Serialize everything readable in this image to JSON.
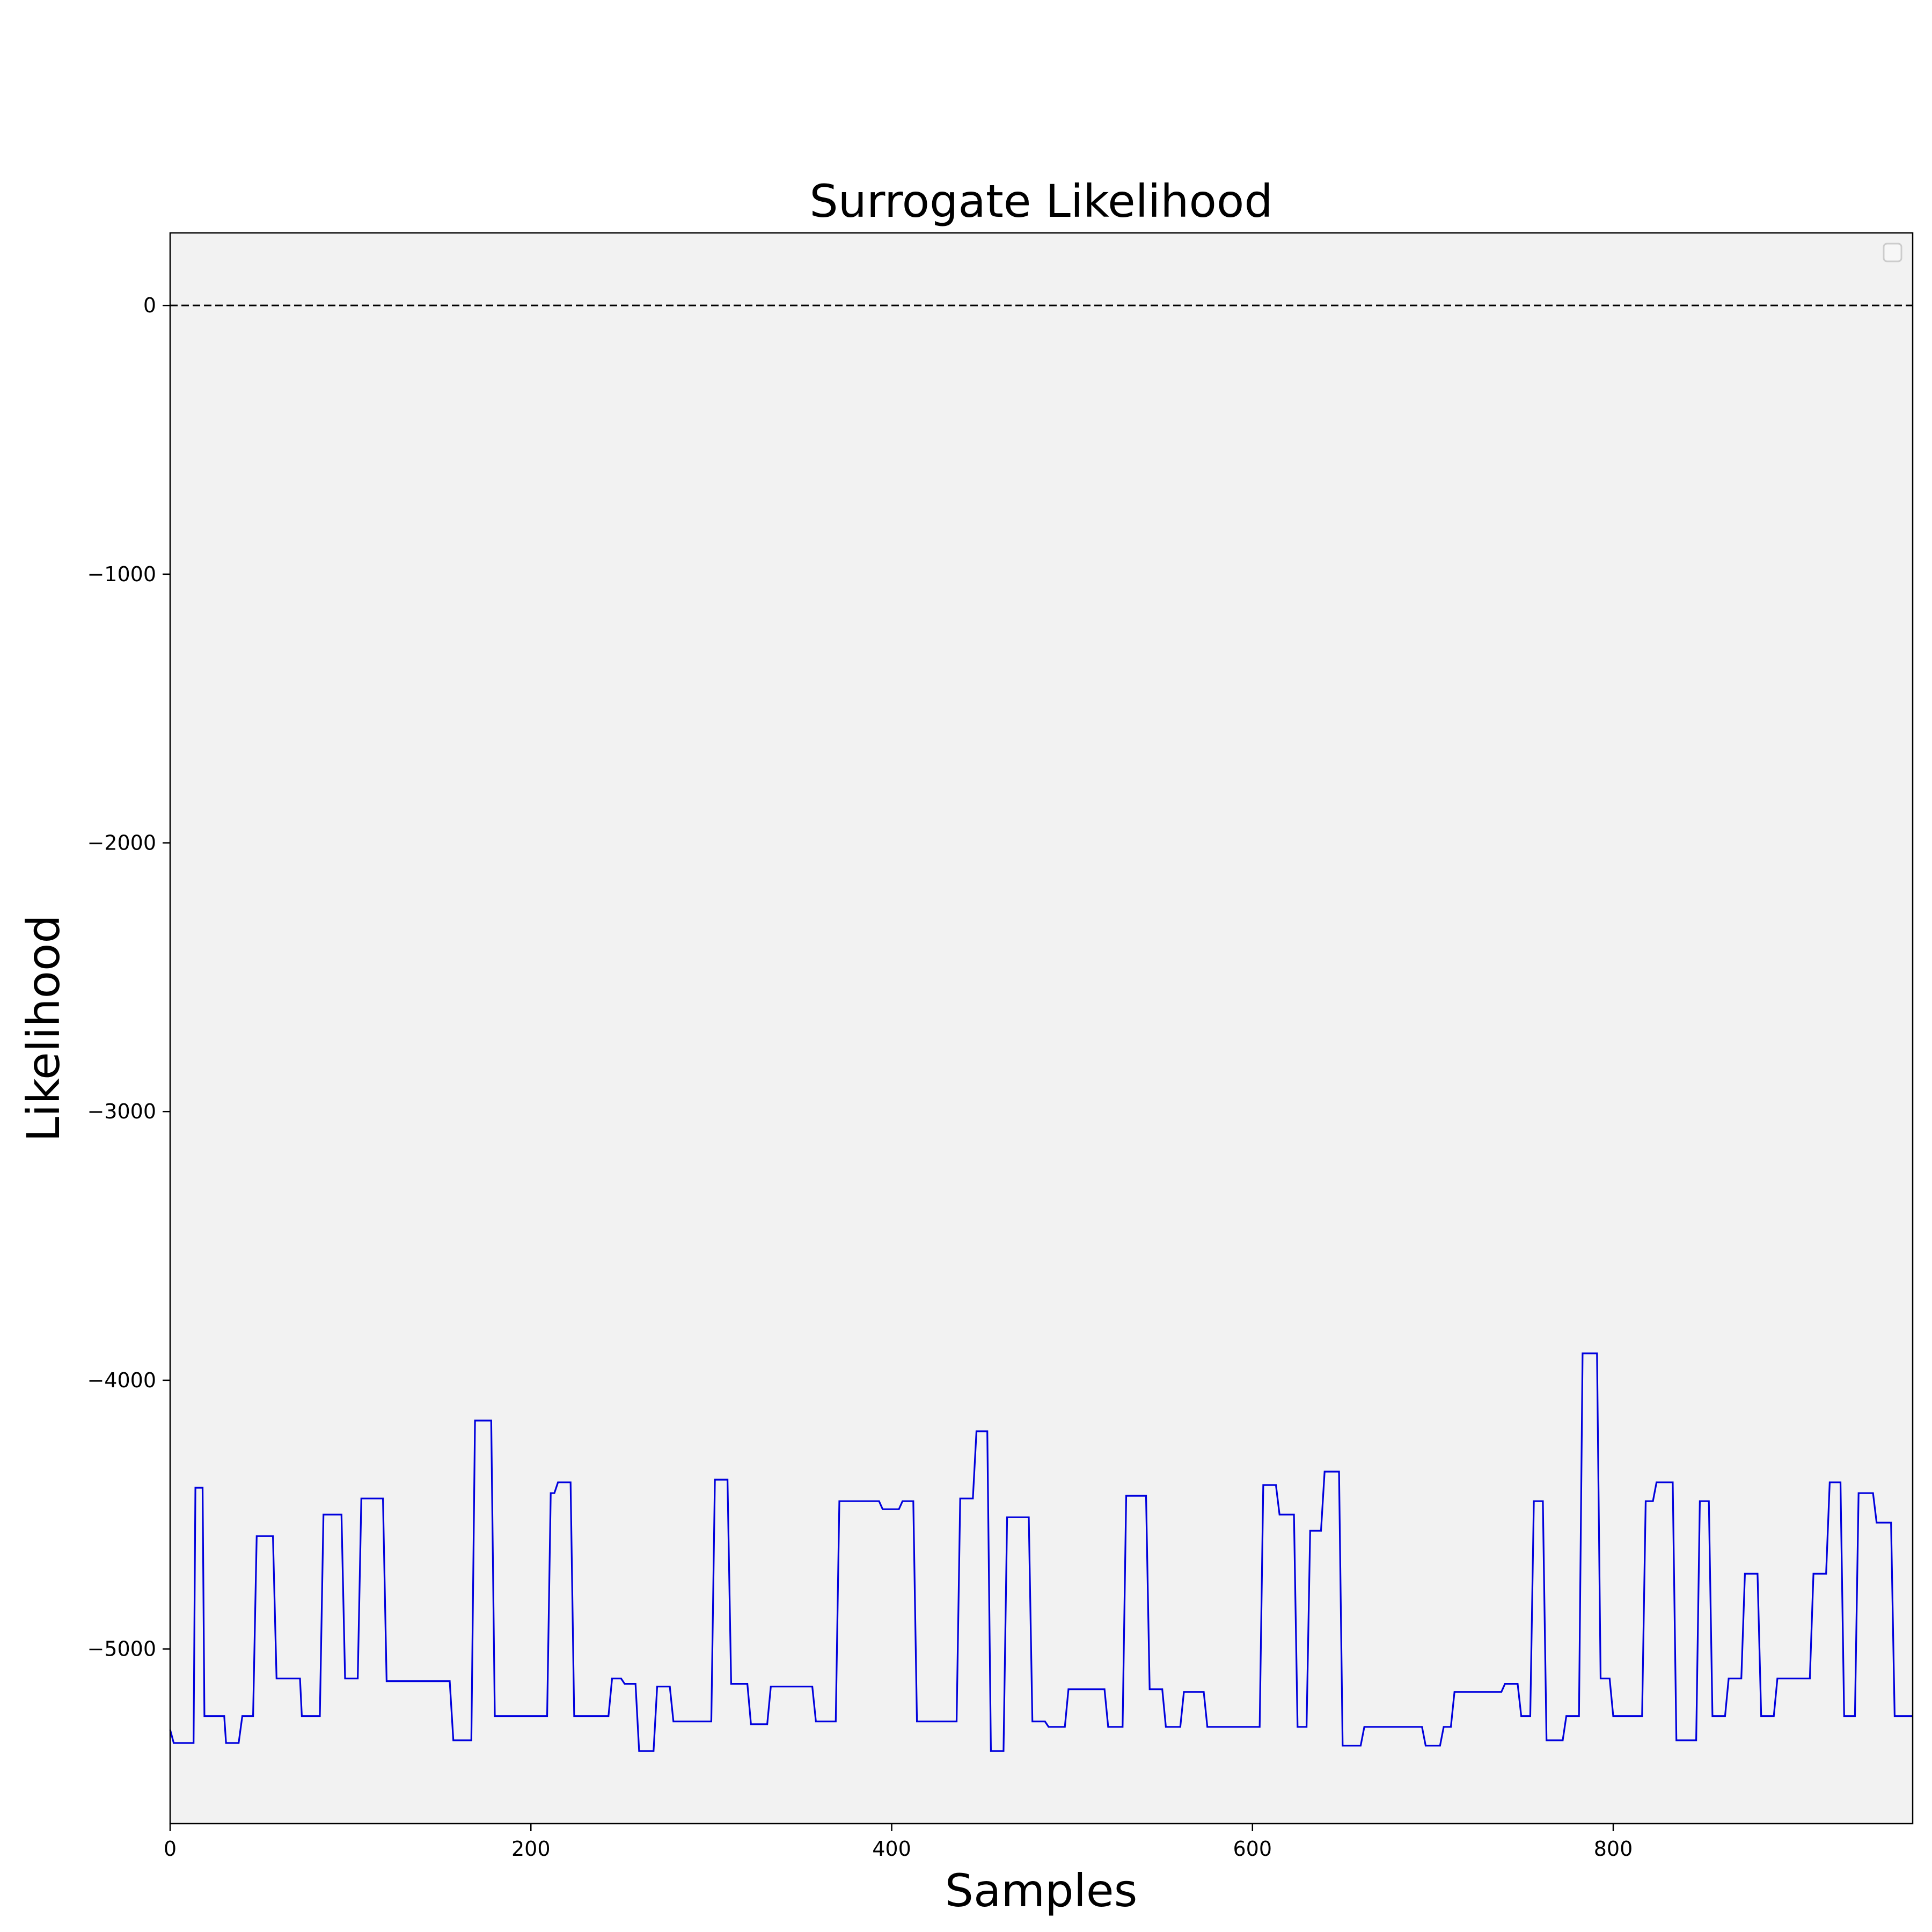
{
  "chart_data": {
    "type": "line",
    "title": "Surrogate  Likelihood",
    "xlabel": "Samples",
    "ylabel": "Likelihood",
    "xlim": [
      0,
      966
    ],
    "ylim": [
      -5650,
      270
    ],
    "x_ticks": [
      0,
      200,
      400,
      600,
      800
    ],
    "x_tick_labels": [
      "0",
      "200",
      "400",
      "600",
      "800"
    ],
    "y_ticks": [
      0,
      -1000,
      -2000,
      -3000,
      -4000,
      -5000
    ],
    "y_tick_labels": [
      "0",
      "−1000",
      "−2000",
      "−3000",
      "−4000",
      "−5000"
    ],
    "grid": false,
    "legend": {
      "placement": "top-right",
      "entries": []
    },
    "reference_line": {
      "y": 0,
      "style": "dashed",
      "color": "#000000"
    },
    "colors": {
      "line": "#0000dd",
      "plot_background": "#f2f2f2",
      "frame": "#000000"
    },
    "series": [
      {
        "color": "#0000dd",
        "steps": [
          [
            0,
            -5300
          ],
          [
            2,
            -5350
          ],
          [
            13,
            -5350
          ],
          [
            14,
            -4400
          ],
          [
            18,
            -4400
          ],
          [
            19,
            -5250
          ],
          [
            30,
            -5250
          ],
          [
            31,
            -5350
          ],
          [
            38,
            -5350
          ],
          [
            40,
            -5250
          ],
          [
            46,
            -5250
          ],
          [
            48,
            -4580
          ],
          [
            57,
            -4580
          ],
          [
            59,
            -5110
          ],
          [
            72,
            -5110
          ],
          [
            73,
            -5250
          ],
          [
            83,
            -5250
          ],
          [
            85,
            -4500
          ],
          [
            95,
            -4500
          ],
          [
            97,
            -5110
          ],
          [
            104,
            -5110
          ],
          [
            106,
            -4440
          ],
          [
            118,
            -4440
          ],
          [
            120,
            -5120
          ],
          [
            155,
            -5120
          ],
          [
            157,
            -5340
          ],
          [
            167,
            -5340
          ],
          [
            169,
            -4150
          ],
          [
            178,
            -4150
          ],
          [
            180,
            -5250
          ],
          [
            209,
            -5250
          ],
          [
            211,
            -4420
          ],
          [
            213,
            -4420
          ],
          [
            215,
            -4380
          ],
          [
            222,
            -4380
          ],
          [
            224,
            -5250
          ],
          [
            243,
            -5250
          ],
          [
            245,
            -5110
          ],
          [
            250,
            -5110
          ],
          [
            252,
            -5130
          ],
          [
            258,
            -5130
          ],
          [
            260,
            -5380
          ],
          [
            268,
            -5380
          ],
          [
            270,
            -5140
          ],
          [
            277,
            -5140
          ],
          [
            279,
            -5270
          ],
          [
            300,
            -5270
          ],
          [
            302,
            -4370
          ],
          [
            309,
            -4370
          ],
          [
            311,
            -5130
          ],
          [
            320,
            -5130
          ],
          [
            322,
            -5280
          ],
          [
            331,
            -5280
          ],
          [
            333,
            -5140
          ],
          [
            356,
            -5140
          ],
          [
            358,
            -5270
          ],
          [
            369,
            -5270
          ],
          [
            371,
            -4450
          ],
          [
            393,
            -4450
          ],
          [
            395,
            -4480
          ],
          [
            404,
            -4480
          ],
          [
            406,
            -4450
          ],
          [
            412,
            -4450
          ],
          [
            414,
            -5270
          ],
          [
            436,
            -5270
          ],
          [
            438,
            -4440
          ],
          [
            445,
            -4440
          ],
          [
            447,
            -4190
          ],
          [
            453,
            -4190
          ],
          [
            455,
            -5380
          ],
          [
            462,
            -5380
          ],
          [
            464,
            -4510
          ],
          [
            476,
            -4510
          ],
          [
            478,
            -5270
          ],
          [
            485,
            -5270
          ],
          [
            487,
            -5290
          ],
          [
            496,
            -5290
          ],
          [
            498,
            -5150
          ],
          [
            518,
            -5150
          ],
          [
            520,
            -5290
          ],
          [
            528,
            -5290
          ],
          [
            530,
            -4430
          ],
          [
            541,
            -4430
          ],
          [
            543,
            -5150
          ],
          [
            550,
            -5150
          ],
          [
            552,
            -5290
          ],
          [
            560,
            -5290
          ],
          [
            562,
            -5160
          ],
          [
            573,
            -5160
          ],
          [
            575,
            -5290
          ],
          [
            604,
            -5290
          ],
          [
            606,
            -4390
          ],
          [
            613,
            -4390
          ],
          [
            615,
            -4500
          ],
          [
            623,
            -4500
          ],
          [
            625,
            -5290
          ],
          [
            630,
            -5290
          ],
          [
            632,
            -4560
          ],
          [
            638,
            -4560
          ],
          [
            640,
            -4340
          ],
          [
            648,
            -4340
          ],
          [
            650,
            -5360
          ],
          [
            660,
            -5360
          ],
          [
            662,
            -5290
          ],
          [
            694,
            -5290
          ],
          [
            696,
            -5360
          ],
          [
            704,
            -5360
          ],
          [
            706,
            -5290
          ],
          [
            710,
            -5290
          ],
          [
            712,
            -5160
          ],
          [
            738,
            -5160
          ],
          [
            740,
            -5130
          ],
          [
            747,
            -5130
          ],
          [
            749,
            -5250
          ],
          [
            754,
            -5250
          ],
          [
            756,
            -4450
          ],
          [
            761,
            -4450
          ],
          [
            763,
            -5340
          ],
          [
            772,
            -5340
          ],
          [
            774,
            -5250
          ],
          [
            781,
            -5250
          ],
          [
            783,
            -3900
          ],
          [
            791,
            -3900
          ],
          [
            793,
            -5110
          ],
          [
            798,
            -5110
          ],
          [
            800,
            -5250
          ],
          [
            816,
            -5250
          ],
          [
            818,
            -4450
          ],
          [
            822,
            -4450
          ],
          [
            824,
            -4380
          ],
          [
            833,
            -4380
          ],
          [
            835,
            -5340
          ],
          [
            846,
            -5340
          ],
          [
            848,
            -4450
          ],
          [
            853,
            -4450
          ],
          [
            855,
            -5250
          ],
          [
            862,
            -5250
          ],
          [
            864,
            -5110
          ],
          [
            871,
            -5110
          ],
          [
            873,
            -4720
          ],
          [
            880,
            -4720
          ],
          [
            882,
            -5250
          ],
          [
            889,
            -5250
          ],
          [
            891,
            -5110
          ],
          [
            909,
            -5110
          ],
          [
            911,
            -4720
          ],
          [
            918,
            -4720
          ],
          [
            920,
            -4380
          ],
          [
            926,
            -4380
          ],
          [
            928,
            -5250
          ],
          [
            934,
            -5250
          ],
          [
            936,
            -4420
          ],
          [
            944,
            -4420
          ],
          [
            946,
            -4530
          ],
          [
            954,
            -4530
          ],
          [
            956,
            -5250
          ],
          [
            966,
            -5250
          ]
        ]
      }
    ]
  }
}
